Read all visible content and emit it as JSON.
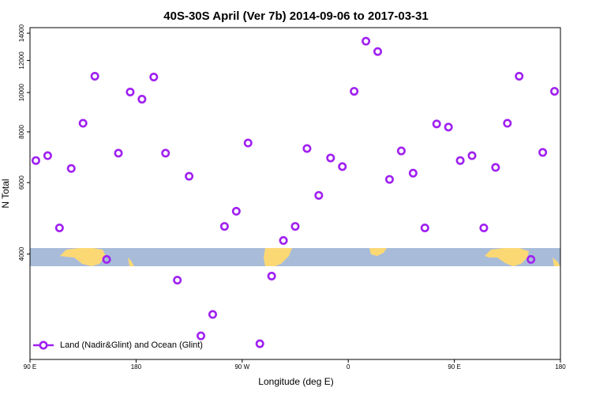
{
  "chart_data": {
    "type": "scatter",
    "title": "40S-30S April (Ver 7b)   2014-09-06 to 2017-03-31",
    "x_label": "Longitude (deg E)",
    "y_label": "N Total",
    "x": [
      95,
      105,
      115,
      125,
      135,
      145,
      155,
      165,
      175,
      185,
      195,
      205,
      215,
      225,
      235,
      245,
      255,
      265,
      275,
      285,
      295,
      305,
      315,
      325,
      335,
      345,
      355,
      365,
      375,
      385,
      395,
      405,
      415,
      425,
      435,
      445,
      455,
      465,
      475,
      485,
      495,
      505,
      515,
      525,
      535
    ],
    "series": [
      {
        "name": "Land (Nadir&Glint) and Ocean (Glint)",
        "color": "#a020f0",
        "values": [
          6800,
          6990,
          4640,
          6500,
          8400,
          10970,
          3880,
          7090,
          10030,
          9630,
          10920,
          7090,
          3450,
          6220,
          2515,
          2840,
          4680,
          5100,
          7510,
          2405,
          3530,
          4320,
          4680,
          7280,
          5580,
          6900,
          6570,
          10070,
          13380,
          12620,
          6110,
          7180,
          6330,
          4640,
          8370,
          8220,
          6800,
          6990,
          4640,
          6540,
          8400,
          10970,
          3880,
          7120,
          10070
        ]
      }
    ],
    "xlim": [
      90,
      540
    ],
    "xticks": [
      {
        "value": 90,
        "label": "90 E"
      },
      180,
      {
        "value": 270,
        "label": "90 W"
      },
      {
        "value": 360,
        "label": "0"
      },
      {
        "value": 450,
        "label": "90 E"
      },
      {
        "value": 540,
        "label": "180"
      }
    ],
    "ylim": [
      2200,
      14450
    ],
    "yticks": [
      4000,
      6000,
      8000,
      10000,
      12000,
      14000
    ],
    "yscale": "log",
    "legend": "bottom-left"
  }
}
